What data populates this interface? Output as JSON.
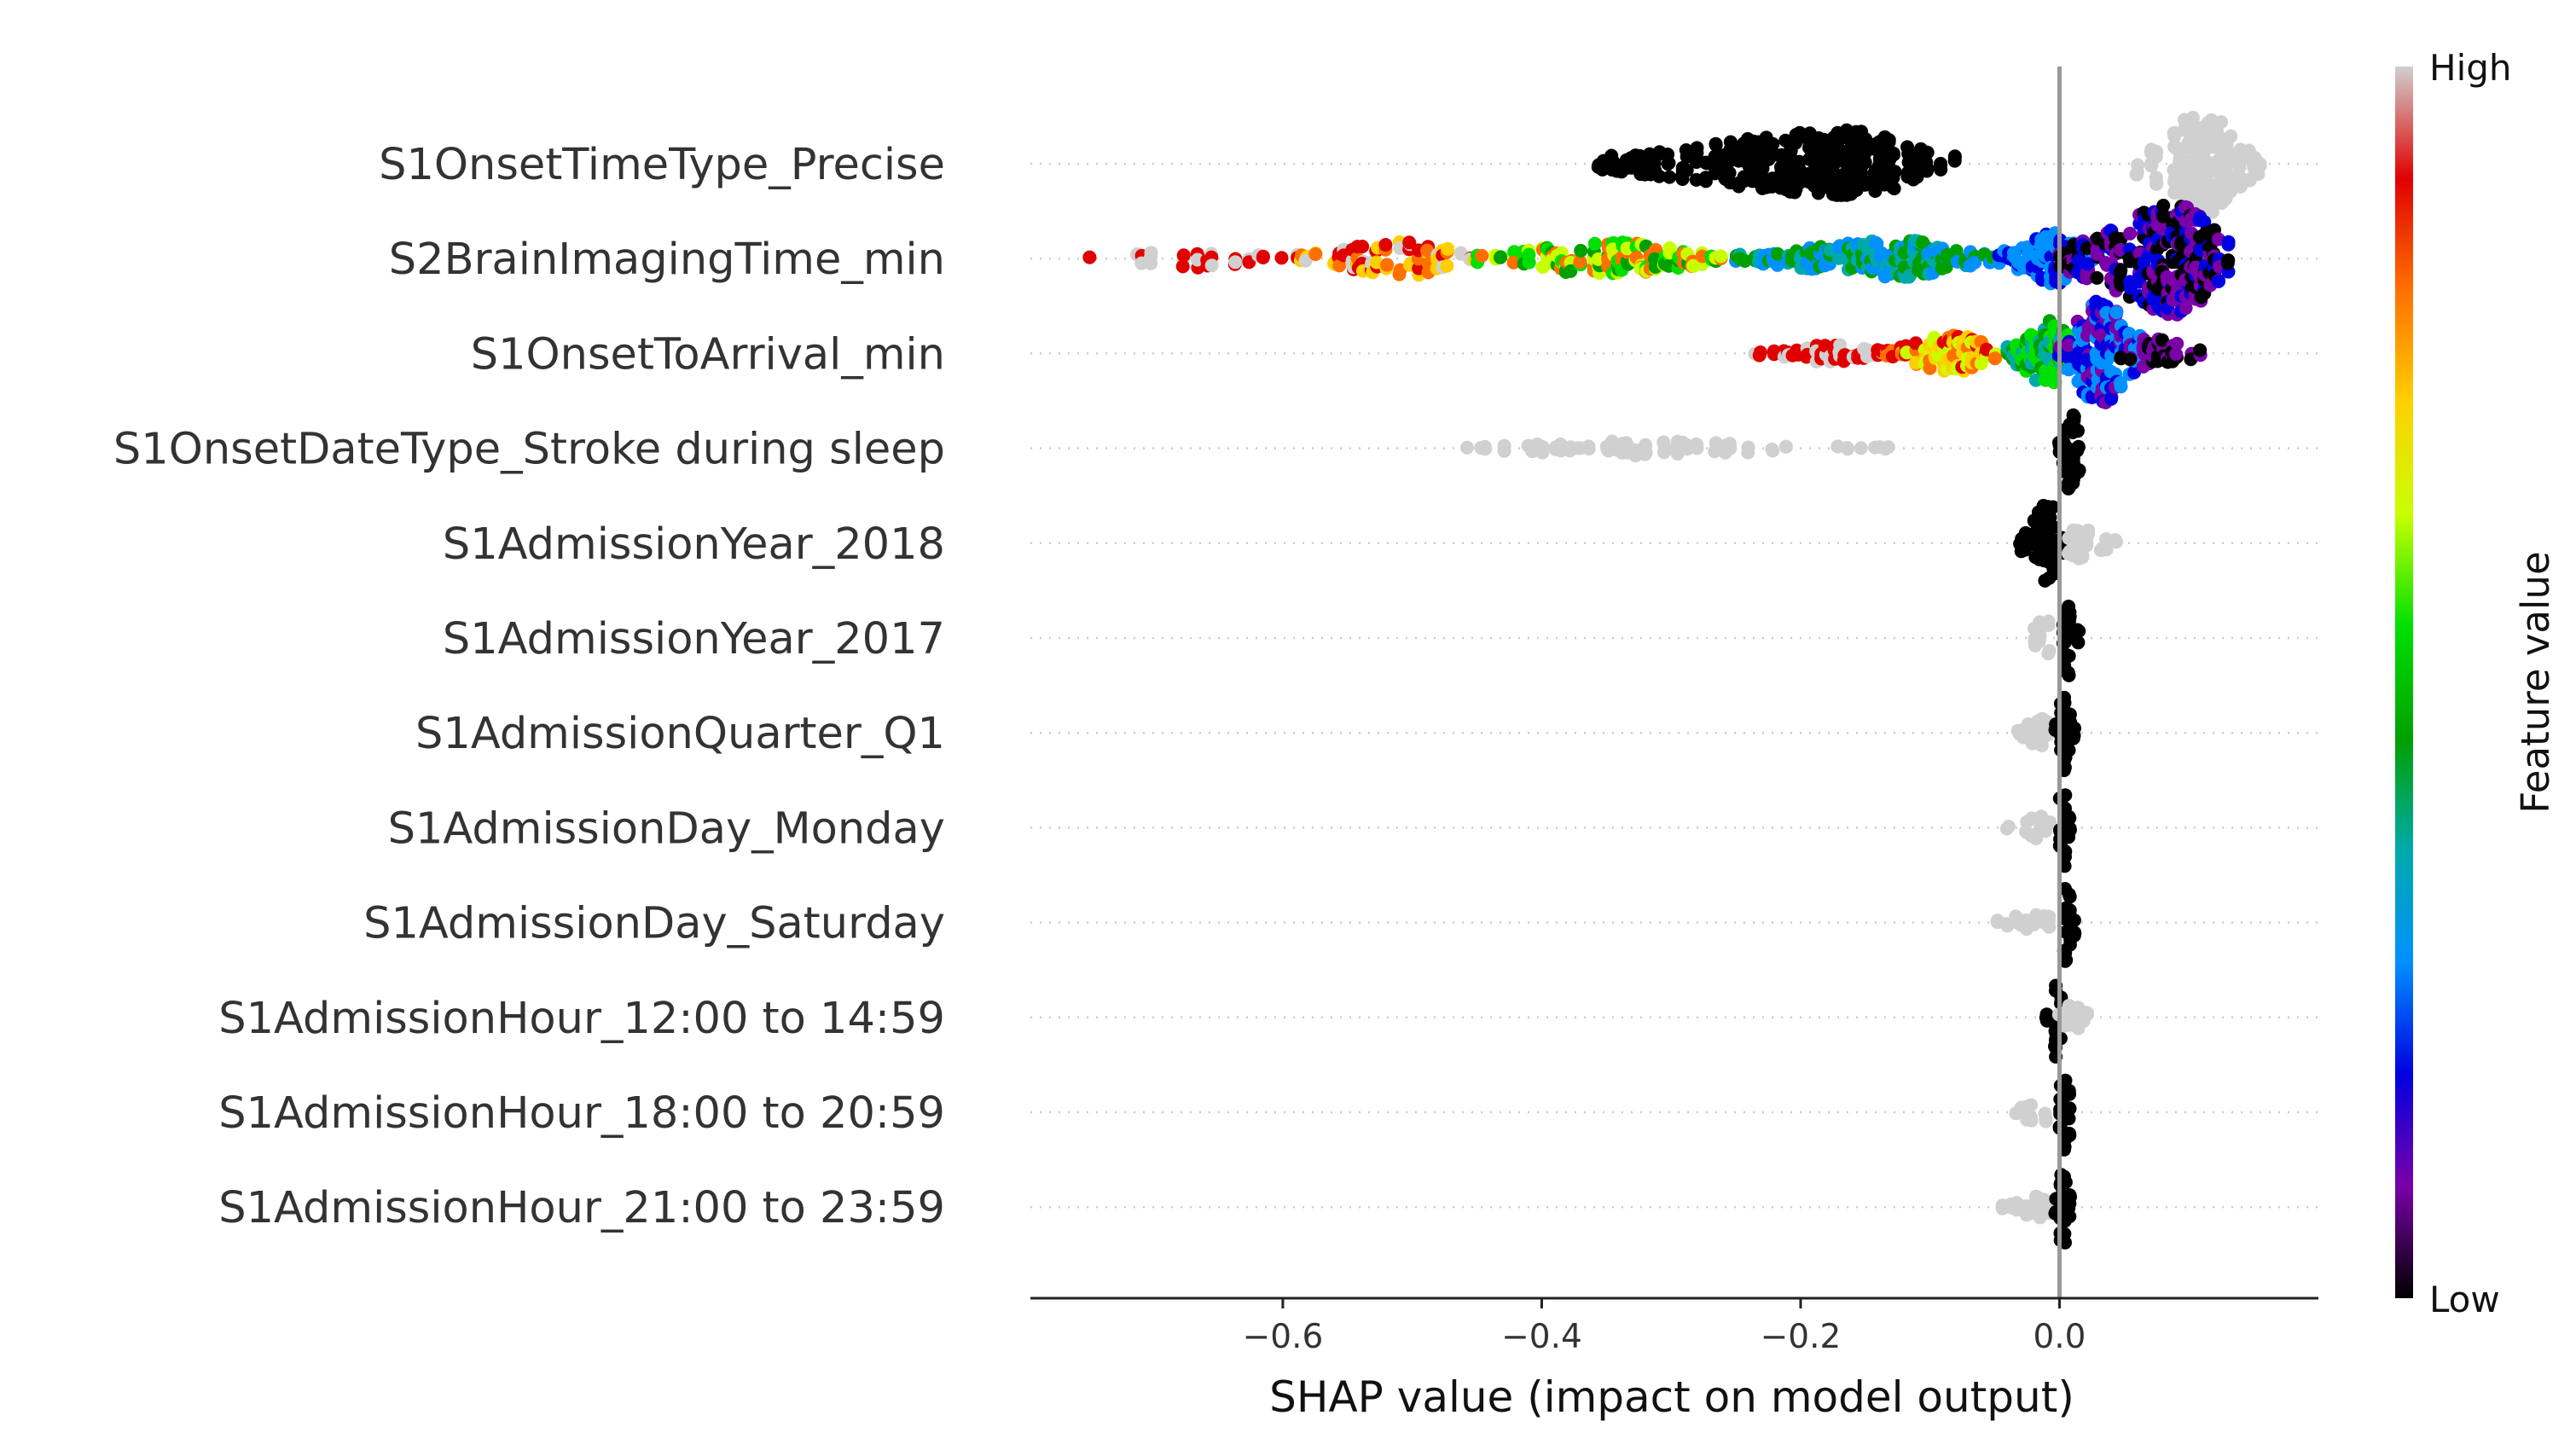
{
  "chart_data": {
    "type": "scatter",
    "subtype": "shap-beeswarm-summary",
    "xlabel": "SHAP value (impact on model output)",
    "xlim": [
      -0.795,
      0.2
    ],
    "xticks": [
      -0.6,
      -0.4,
      -0.2,
      0.0
    ],
    "xtick_labels": [
      "−0.6",
      "−0.4",
      "−0.2",
      "0.0"
    ],
    "zero_line": 0.0,
    "grid": false,
    "colorbar": {
      "title": "Feature value",
      "high_label": "High",
      "low_label": "Low",
      "colormap": [
        "#000000",
        "#7a00a8",
        "#0000e0",
        "#0090ff",
        "#00aaaa",
        "#00a000",
        "#00e000",
        "#c8ff00",
        "#ffd000",
        "#ff7000",
        "#e00000",
        "#d0d0d0"
      ]
    },
    "features": [
      {
        "name": "S1OnsetTimeType_Precise",
        "groups": [
          {
            "range": [
              -0.36,
              -0.08
            ],
            "center": -0.16,
            "spread": 0.9,
            "colors": [
              "#000000"
            ],
            "density": 1.0
          },
          {
            "range": [
              0.06,
              0.155
            ],
            "center": 0.11,
            "spread": 1.4,
            "colors": [
              "#d0d0d0"
            ],
            "density": 1.0
          }
        ]
      },
      {
        "name": "S2BrainImagingTime_min",
        "groups": [
          {
            "range": [
              -0.76,
              -0.6
            ],
            "center": -0.66,
            "spread": 0.25,
            "colors": [
              "#d0d0d0",
              "#e00000"
            ],
            "density": 0.4
          },
          {
            "range": [
              -0.6,
              -0.45
            ],
            "center": -0.5,
            "spread": 0.45,
            "colors": [
              "#e00000",
              "#ff7000",
              "#ffd000",
              "#d0d0d0"
            ],
            "density": 0.6
          },
          {
            "range": [
              -0.45,
              -0.25
            ],
            "center": -0.35,
            "spread": 0.45,
            "colors": [
              "#c8ff00",
              "#00e000",
              "#00a000",
              "#ff7000"
            ],
            "density": 0.8
          },
          {
            "range": [
              -0.25,
              -0.05
            ],
            "center": -0.12,
            "spread": 0.5,
            "colors": [
              "#00aaaa",
              "#0090ff",
              "#00a000"
            ],
            "density": 1.0
          },
          {
            "range": [
              -0.05,
              0.03
            ],
            "center": 0.0,
            "spread": 0.7,
            "colors": [
              "#0090ff",
              "#0000e0"
            ],
            "density": 1.0
          },
          {
            "range": [
              0.0,
              0.14
            ],
            "center": 0.09,
            "spread": 1.5,
            "colors": [
              "#7a00a8",
              "#000000",
              "#0000e0"
            ],
            "density": 1.0
          }
        ]
      },
      {
        "name": "S1OnsetToArrival_min",
        "groups": [
          {
            "range": [
              -0.235,
              -0.13
            ],
            "center": -0.17,
            "spread": 0.25,
            "colors": [
              "#d0d0d0",
              "#e00000"
            ],
            "density": 0.8
          },
          {
            "range": [
              -0.14,
              -0.04
            ],
            "center": -0.08,
            "spread": 0.5,
            "colors": [
              "#e00000",
              "#ff7000",
              "#ffd000",
              "#c8ff00"
            ],
            "density": 1.0
          },
          {
            "range": [
              -0.04,
              0.02
            ],
            "center": -0.01,
            "spread": 0.9,
            "colors": [
              "#00e000",
              "#00a000",
              "#00aaaa"
            ],
            "density": 1.0
          },
          {
            "range": [
              0.0,
              0.07
            ],
            "center": 0.03,
            "spread": 1.4,
            "colors": [
              "#0090ff",
              "#0000e0",
              "#7a00a8"
            ],
            "density": 1.0
          },
          {
            "range": [
              0.04,
              0.115
            ],
            "center": 0.07,
            "spread": 0.4,
            "colors": [
              "#000000",
              "#7a00a8"
            ],
            "density": 0.8
          }
        ]
      },
      {
        "name": "S1OnsetDateType_Stroke during sleep",
        "groups": [
          {
            "range": [
              -0.465,
              -0.13
            ],
            "center": -0.32,
            "spread": 0.2,
            "colors": [
              "#d0d0d0"
            ],
            "density": 0.5
          },
          {
            "range": [
              0.0,
              0.02
            ],
            "center": 0.008,
            "spread": 1.1,
            "colors": [
              "#000000"
            ],
            "density": 1.0
          }
        ]
      },
      {
        "name": "S1AdmissionYear_2018",
        "groups": [
          {
            "range": [
              -0.03,
              0.005
            ],
            "center": -0.008,
            "spread": 1.1,
            "colors": [
              "#000000"
            ],
            "density": 1.0
          },
          {
            "range": [
              0.0,
              0.045
            ],
            "center": 0.012,
            "spread": 0.5,
            "colors": [
              "#d0d0d0"
            ],
            "density": 0.8
          }
        ]
      },
      {
        "name": "S1AdmissionYear_2017",
        "groups": [
          {
            "range": [
              -0.03,
              0.0
            ],
            "center": -0.01,
            "spread": 0.5,
            "colors": [
              "#d0d0d0"
            ],
            "density": 0.8
          },
          {
            "range": [
              0.0,
              0.015
            ],
            "center": 0.005,
            "spread": 1.1,
            "colors": [
              "#000000"
            ],
            "density": 1.0
          }
        ]
      },
      {
        "name": "S1AdmissionQuarter_Q1",
        "groups": [
          {
            "range": [
              -0.035,
              0.0
            ],
            "center": -0.012,
            "spread": 0.4,
            "colors": [
              "#d0d0d0"
            ],
            "density": 0.8
          },
          {
            "range": [
              -0.003,
              0.012
            ],
            "center": 0.003,
            "spread": 1.1,
            "colors": [
              "#000000"
            ],
            "density": 1.0
          }
        ]
      },
      {
        "name": "S1AdmissionDay_Monday",
        "groups": [
          {
            "range": [
              -0.04,
              0.0
            ],
            "center": -0.015,
            "spread": 0.3,
            "colors": [
              "#d0d0d0"
            ],
            "density": 0.8
          },
          {
            "range": [
              -0.003,
              0.01
            ],
            "center": 0.003,
            "spread": 1.1,
            "colors": [
              "#000000"
            ],
            "density": 1.0
          }
        ]
      },
      {
        "name": "S1AdmissionDay_Saturday",
        "groups": [
          {
            "range": [
              -0.048,
              0.0
            ],
            "center": -0.018,
            "spread": 0.3,
            "colors": [
              "#d0d0d0"
            ],
            "density": 0.8
          },
          {
            "range": [
              -0.003,
              0.014
            ],
            "center": 0.003,
            "spread": 1.1,
            "colors": [
              "#000000"
            ],
            "density": 1.0
          }
        ]
      },
      {
        "name": "S1AdmissionHour_12:00 to 14:59",
        "groups": [
          {
            "range": [
              -0.01,
              0.004
            ],
            "center": -0.004,
            "spread": 1.1,
            "colors": [
              "#000000"
            ],
            "density": 1.0
          },
          {
            "range": [
              0.0,
              0.025
            ],
            "center": 0.008,
            "spread": 0.4,
            "colors": [
              "#d0d0d0"
            ],
            "density": 0.8
          }
        ]
      },
      {
        "name": "S1AdmissionHour_18:00 to 20:59",
        "groups": [
          {
            "range": [
              -0.04,
              0.0
            ],
            "center": -0.015,
            "spread": 0.3,
            "colors": [
              "#d0d0d0"
            ],
            "density": 0.8
          },
          {
            "range": [
              -0.003,
              0.012
            ],
            "center": 0.003,
            "spread": 1.1,
            "colors": [
              "#000000"
            ],
            "density": 1.0
          }
        ]
      },
      {
        "name": "S1AdmissionHour_21:00 to 23:59",
        "groups": [
          {
            "range": [
              -0.044,
              0.0
            ],
            "center": -0.016,
            "spread": 0.3,
            "colors": [
              "#d0d0d0"
            ],
            "density": 0.8
          },
          {
            "range": [
              -0.003,
              0.01
            ],
            "center": 0.002,
            "spread": 1.1,
            "colors": [
              "#000000"
            ],
            "density": 1.0
          }
        ]
      }
    ]
  }
}
